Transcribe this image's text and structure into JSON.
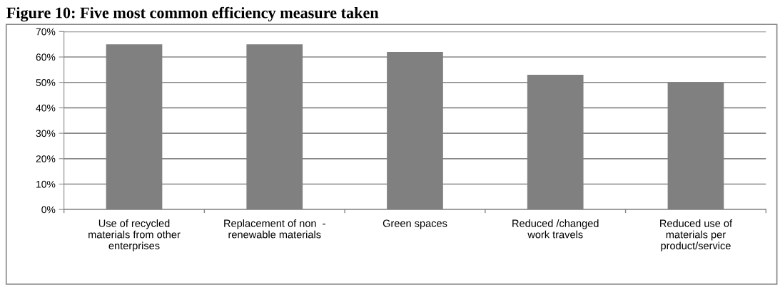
{
  "chart_data": {
    "type": "bar",
    "title": "Figure 10: Five most common efficiency measure taken",
    "categories": [
      "Use of recycled\nmaterials from other\nenterprises",
      "Replacement of non  -\nrenewable materials",
      "Green spaces",
      "Reduced /changed\nwork travels",
      "Reduced use of\nmaterials per\nproduct/service"
    ],
    "values": [
      65,
      65,
      62,
      53,
      50
    ],
    "color": "#808080",
    "ylim": [
      0,
      70
    ],
    "yticks": [
      {
        "value": 0,
        "label": "0%"
      },
      {
        "value": 10,
        "label": "10%"
      },
      {
        "value": 20,
        "label": "20%"
      },
      {
        "value": 30,
        "label": "30%"
      },
      {
        "value": 40,
        "label": "40%"
      },
      {
        "value": 50,
        "label": "50%"
      },
      {
        "value": 60,
        "label": "60%"
      },
      {
        "value": 70,
        "label": "70%"
      }
    ],
    "grid": "y",
    "legend": false
  }
}
